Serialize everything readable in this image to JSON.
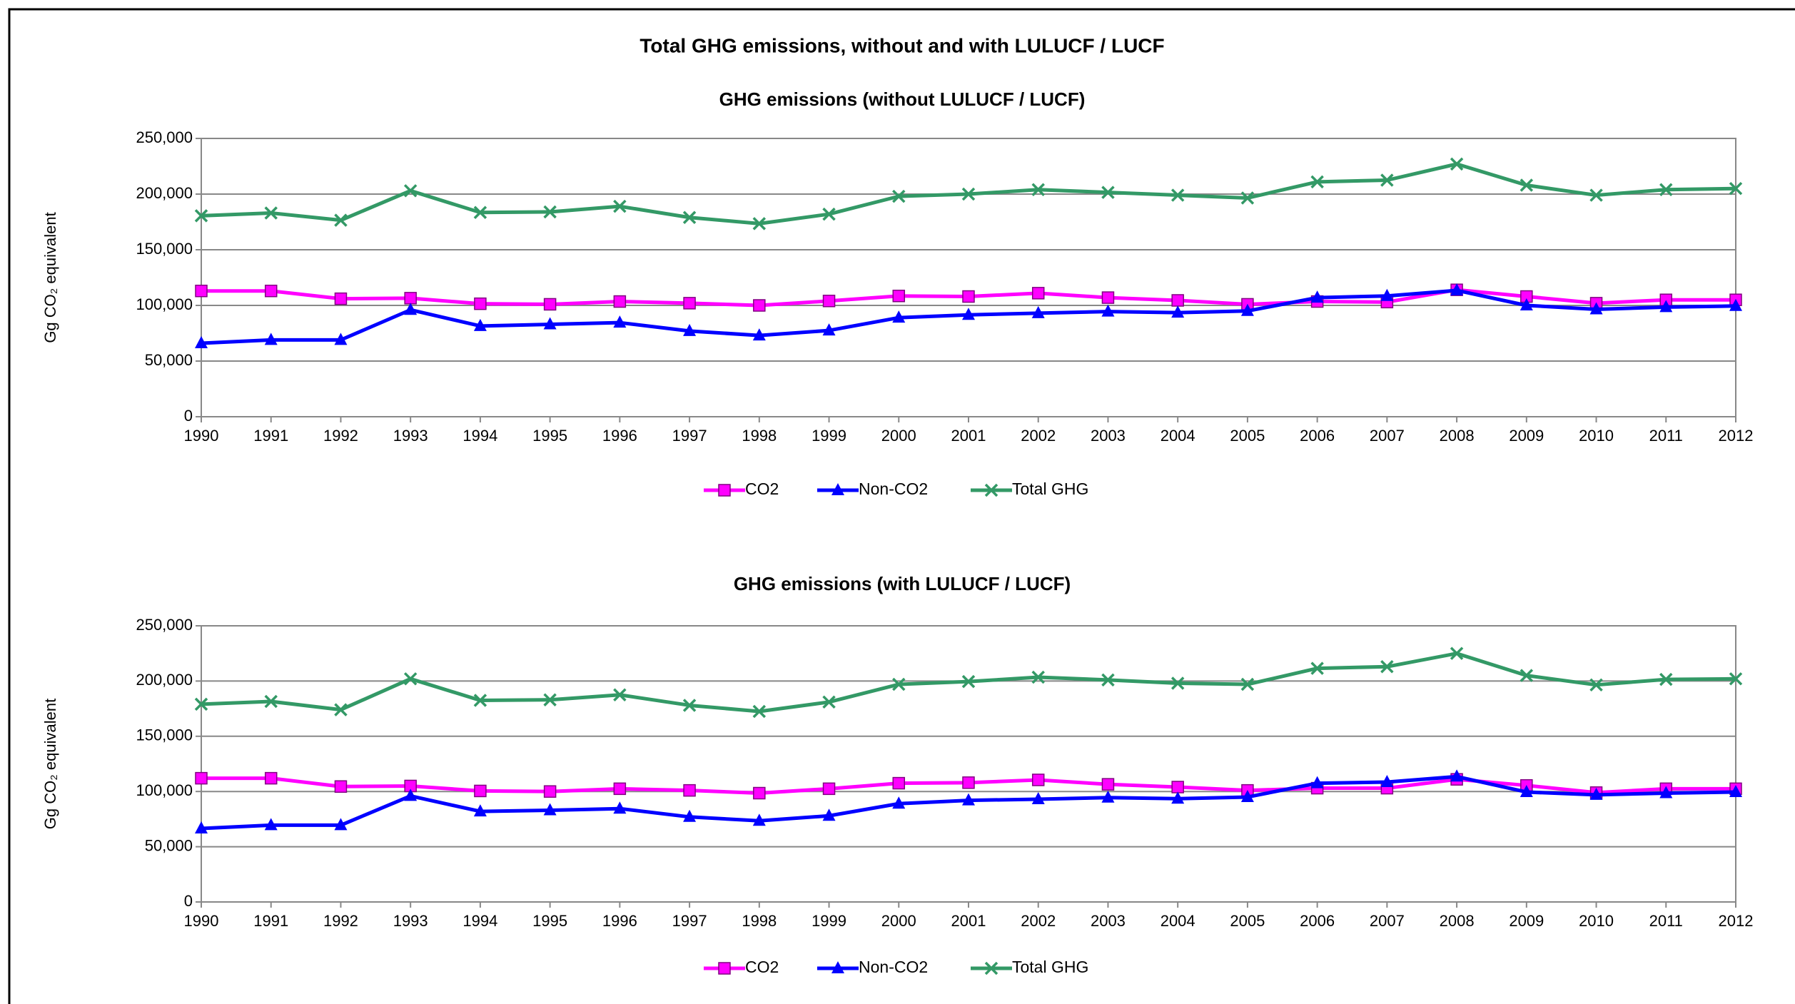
{
  "title": "Total GHG emissions, without and with LULUCF / LUCF",
  "chart_data": [
    {
      "type": "line",
      "title": "GHG emissions (without LULUCF / LUCF)",
      "y_label": "Gg CO₂ equivalent",
      "categories": [
        "1990",
        "1991",
        "1992",
        "1993",
        "1994",
        "1995",
        "1996",
        "1997",
        "1998",
        "1999",
        "2000",
        "2001",
        "2002",
        "2003",
        "2004",
        "2005",
        "2006",
        "2007",
        "2008",
        "2009",
        "2010",
        "2011",
        "2012"
      ],
      "series": [
        {
          "name": "CO2",
          "color": "#ff00ff",
          "marker": "square",
          "values": [
            113000,
            113000,
            106000,
            106500,
            101500,
            101000,
            103500,
            102000,
            100000,
            104000,
            108500,
            108000,
            111000,
            107000,
            104500,
            101000,
            103500,
            103000,
            114000,
            108000,
            102000,
            105000,
            105000
          ]
        },
        {
          "name": "Non-CO2",
          "color": "#0000ff",
          "marker": "triangle",
          "values": [
            66000,
            69000,
            69000,
            96000,
            81500,
            83000,
            84500,
            77000,
            73000,
            77500,
            89000,
            91500,
            93000,
            94500,
            93500,
            95000,
            107000,
            108500,
            113500,
            100000,
            96500,
            98500,
            99500
          ]
        },
        {
          "name": "Total GHG",
          "color": "#339966",
          "marker": "x",
          "values": [
            180500,
            183000,
            176500,
            203000,
            183500,
            184000,
            189000,
            179000,
            173500,
            182000,
            198000,
            200000,
            204000,
            201500,
            199000,
            196500,
            211000,
            212500,
            227000,
            208000,
            199000,
            204000,
            205000
          ]
        }
      ],
      "ylim": [
        0,
        250000
      ],
      "yticks": [
        0,
        {
          "value": 50000,
          "label": "50,000"
        },
        {
          "value": 100000,
          "label": "100,000"
        },
        {
          "value": 150000,
          "label": "150,000"
        },
        {
          "value": 200000,
          "label": "200,000"
        },
        {
          "value": 250000,
          "label": "250,000"
        }
      ],
      "grid": true,
      "legend": "bottom"
    },
    {
      "type": "line",
      "title": "GHG emissions (with LULUCF / LUCF)",
      "y_label": "Gg CO₂ equivalent",
      "categories": [
        "1990",
        "1991",
        "1992",
        "1993",
        "1994",
        "1995",
        "1996",
        "1997",
        "1998",
        "1999",
        "2000",
        "2001",
        "2002",
        "2003",
        "2004",
        "2005",
        "2006",
        "2007",
        "2008",
        "2009",
        "2010",
        "2011",
        "2012"
      ],
      "series": [
        {
          "name": "CO2",
          "color": "#ff00ff",
          "marker": "square",
          "values": [
            112000,
            112000,
            104500,
            105000,
            100500,
            100000,
            102500,
            101000,
            98500,
            102500,
            107500,
            108000,
            110500,
            106500,
            104000,
            101000,
            103000,
            103000,
            111000,
            105500,
            99000,
            102500,
            102500
          ]
        },
        {
          "name": "Non-CO2",
          "color": "#0000ff",
          "marker": "triangle",
          "values": [
            66500,
            69500,
            69500,
            96000,
            82000,
            83000,
            84500,
            77000,
            73500,
            78000,
            89000,
            92000,
            93000,
            94500,
            93500,
            95000,
            107500,
            108500,
            113500,
            99500,
            97000,
            98500,
            99500
          ]
        },
        {
          "name": "Total GHG",
          "color": "#339966",
          "marker": "x",
          "values": [
            179000,
            181500,
            174000,
            202000,
            182500,
            183000,
            187500,
            178000,
            172500,
            181000,
            197000,
            199500,
            203500,
            201000,
            198000,
            197000,
            211500,
            213000,
            225000,
            205000,
            196500,
            201500,
            202000
          ]
        }
      ],
      "ylim": [
        0,
        250000
      ],
      "yticks": [
        0,
        {
          "value": 50000,
          "label": "50,000"
        },
        {
          "value": 100000,
          "label": "100,000"
        },
        {
          "value": 150000,
          "label": "150,000"
        },
        {
          "value": 200000,
          "label": "200,000"
        },
        {
          "value": 250000,
          "label": "250,000"
        }
      ],
      "grid": true,
      "legend": "bottom"
    }
  ]
}
